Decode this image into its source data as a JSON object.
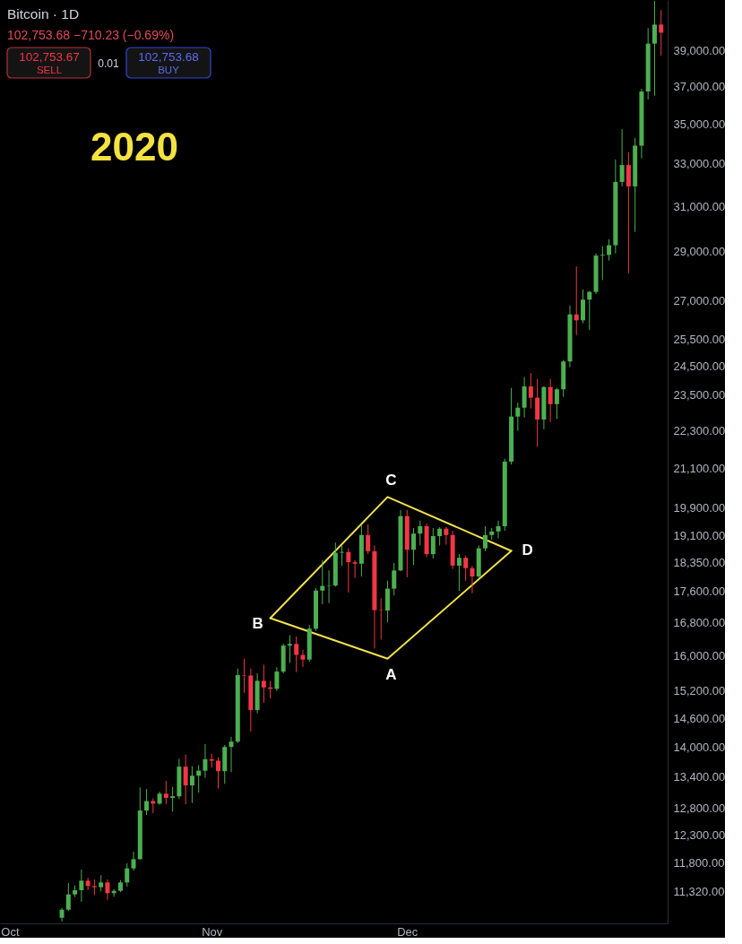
{
  "chart_data": {
    "type": "candlestick",
    "title": "Bitcoin · 1D",
    "subtitle": "102,753.68 −710.23 (−0.69%)",
    "x": [
      "2020-10-09",
      "2020-10-10",
      "2020-10-11",
      "2020-10-12",
      "2020-10-13",
      "2020-10-14",
      "2020-10-15",
      "2020-10-16",
      "2020-10-17",
      "2020-10-18",
      "2020-10-19",
      "2020-10-20",
      "2020-10-21",
      "2020-10-22",
      "2020-10-23",
      "2020-10-24",
      "2020-10-25",
      "2020-10-26",
      "2020-10-27",
      "2020-10-28",
      "2020-10-29",
      "2020-10-30",
      "2020-10-31",
      "2020-11-01",
      "2020-11-02",
      "2020-11-03",
      "2020-11-04",
      "2020-11-05",
      "2020-11-06",
      "2020-11-07",
      "2020-11-08",
      "2020-11-09",
      "2020-11-10",
      "2020-11-11",
      "2020-11-12",
      "2020-11-13",
      "2020-11-14",
      "2020-11-15",
      "2020-11-16",
      "2020-11-17",
      "2020-11-18",
      "2020-11-19",
      "2020-11-20",
      "2020-11-21",
      "2020-11-22",
      "2020-11-23",
      "2020-11-24",
      "2020-11-25",
      "2020-11-26",
      "2020-11-27",
      "2020-11-28",
      "2020-11-29",
      "2020-11-30",
      "2020-12-01",
      "2020-12-02",
      "2020-12-03",
      "2020-12-04",
      "2020-12-05",
      "2020-12-06",
      "2020-12-07",
      "2020-12-08",
      "2020-12-09",
      "2020-12-10",
      "2020-12-11",
      "2020-12-12",
      "2020-12-13",
      "2020-12-14",
      "2020-12-15",
      "2020-12-16",
      "2020-12-17",
      "2020-12-18",
      "2020-12-19",
      "2020-12-20",
      "2020-12-21",
      "2020-12-22",
      "2020-12-23",
      "2020-12-24",
      "2020-12-25",
      "2020-12-26",
      "2020-12-27",
      "2020-12-28",
      "2020-12-29",
      "2020-12-30",
      "2020-12-31",
      "2021-01-01",
      "2021-01-02",
      "2021-01-03",
      "2021-01-04",
      "2021-01-05",
      "2021-01-06",
      "2021-01-07",
      "2021-01-08",
      "2021-01-09"
    ],
    "ohlc": [
      [
        10890,
        11050,
        10830,
        11020
      ],
      [
        11020,
        11460,
        11000,
        11270
      ],
      [
        11270,
        11420,
        11230,
        11340
      ],
      [
        11340,
        11690,
        11150,
        11500
      ],
      [
        11500,
        11550,
        11340,
        11410
      ],
      [
        11410,
        11520,
        11260,
        11390
      ],
      [
        11390,
        11590,
        11320,
        11470
      ],
      [
        11470,
        11520,
        11180,
        11290
      ],
      [
        11290,
        11360,
        11230,
        11330
      ],
      [
        11330,
        11510,
        11310,
        11470
      ],
      [
        11470,
        11800,
        11400,
        11710
      ],
      [
        11710,
        12000,
        11670,
        11870
      ],
      [
        11870,
        13190,
        11860,
        12750
      ],
      [
        12750,
        13160,
        12670,
        12930
      ],
      [
        12930,
        12980,
        12700,
        12880
      ],
      [
        12880,
        13110,
        12860,
        13070
      ],
      [
        13070,
        13320,
        12870,
        12990
      ],
      [
        12990,
        13200,
        12730,
        13020
      ],
      [
        13020,
        13760,
        12970,
        13600
      ],
      [
        13600,
        13840,
        12870,
        13230
      ],
      [
        13230,
        13610,
        12890,
        13420
      ],
      [
        13420,
        13630,
        13090,
        13520
      ],
      [
        13520,
        14060,
        13380,
        13750
      ],
      [
        13750,
        13860,
        13580,
        13720
      ],
      [
        13720,
        13790,
        13170,
        13510
      ],
      [
        13510,
        14040,
        13260,
        14000
      ],
      [
        14000,
        14210,
        13490,
        14110
      ],
      [
        14110,
        15710,
        14080,
        15560
      ],
      [
        15560,
        15940,
        15160,
        15550
      ],
      [
        15550,
        15710,
        14320,
        14780
      ],
      [
        14780,
        15600,
        14710,
        15430
      ],
      [
        15430,
        15800,
        14940,
        15280
      ],
      [
        15280,
        15430,
        15030,
        15250
      ],
      [
        15250,
        15740,
        15200,
        15640
      ],
      [
        15640,
        16300,
        15600,
        16250
      ],
      [
        16250,
        16500,
        15840,
        16290
      ],
      [
        16290,
        16470,
        15630,
        16030
      ],
      [
        16030,
        16150,
        15750,
        15920
      ],
      [
        15920,
        16750,
        15870,
        16660
      ],
      [
        16660,
        17690,
        16610,
        17620
      ],
      [
        17620,
        18430,
        17270,
        17740
      ],
      [
        17740,
        18150,
        17300,
        17750
      ],
      [
        17750,
        18910,
        17720,
        18630
      ],
      [
        18630,
        18830,
        18270,
        18650
      ],
      [
        18650,
        18750,
        17570,
        18370
      ],
      [
        18370,
        18430,
        17950,
        18330
      ],
      [
        18330,
        19410,
        17990,
        19120
      ],
      [
        19120,
        19420,
        18590,
        18670
      ],
      [
        18670,
        18830,
        16180,
        17120
      ],
      [
        17120,
        17420,
        16390,
        17110
      ],
      [
        17110,
        17880,
        16820,
        17670
      ],
      [
        17670,
        18350,
        17490,
        18150
      ],
      [
        18150,
        19830,
        18130,
        19660
      ],
      [
        19660,
        19840,
        17970,
        18710
      ],
      [
        18710,
        19320,
        18300,
        19160
      ],
      [
        19160,
        19530,
        18830,
        19370
      ],
      [
        19370,
        19450,
        18510,
        18590
      ],
      [
        18590,
        19320,
        18470,
        19090
      ],
      [
        19090,
        19340,
        18830,
        19300
      ],
      [
        19300,
        19350,
        18850,
        19120
      ],
      [
        19120,
        19240,
        18190,
        18280
      ],
      [
        18280,
        18590,
        17610,
        18490
      ],
      [
        18490,
        18550,
        17880,
        18210
      ],
      [
        18210,
        18270,
        17550,
        17990
      ],
      [
        17990,
        18830,
        17940,
        18750
      ],
      [
        18750,
        19370,
        18670,
        19120
      ],
      [
        19120,
        19320,
        18990,
        19220
      ],
      [
        19220,
        19530,
        19030,
        19370
      ],
      [
        19370,
        21390,
        19240,
        21300
      ],
      [
        21300,
        23740,
        21210,
        22760
      ],
      [
        22760,
        23230,
        22290,
        23060
      ],
      [
        23060,
        24120,
        22730,
        23790
      ],
      [
        23790,
        24260,
        23030,
        23400
      ],
      [
        23400,
        24050,
        21770,
        22660
      ],
      [
        22660,
        23800,
        22340,
        23770
      ],
      [
        23770,
        24050,
        22580,
        23180
      ],
      [
        23180,
        23740,
        22680,
        23690
      ],
      [
        23690,
        24730,
        23430,
        24680
      ],
      [
        24680,
        26800,
        24470,
        26450
      ],
      [
        26450,
        28380,
        25660,
        26220
      ],
      [
        26220,
        27440,
        26110,
        27030
      ],
      [
        27030,
        27380,
        25850,
        27340
      ],
      [
        27340,
        28930,
        27260,
        28840
      ],
      [
        28840,
        29240,
        27820,
        28870
      ],
      [
        28870,
        29540,
        28630,
        29280
      ],
      [
        29280,
        33220,
        28930,
        32140
      ],
      [
        32140,
        34740,
        31930,
        32950
      ],
      [
        32950,
        33560,
        28100,
        31930
      ],
      [
        31930,
        34290,
        29860,
        33900
      ],
      [
        33900,
        36860,
        33270,
        36710
      ],
      [
        36710,
        40300,
        36280,
        39390
      ],
      [
        39390,
        41950,
        36480,
        40510
      ],
      [
        40510,
        41380,
        38710,
        40030
      ]
    ],
    "colors": [
      "#4caf50",
      "#4caf50",
      "#4caf50",
      "#4caf50",
      "#f23645",
      "#f23645",
      "#4caf50",
      "#f23645",
      "#4caf50",
      "#4caf50",
      "#4caf50",
      "#4caf50",
      "#4caf50",
      "#4caf50",
      "#f23645",
      "#4caf50",
      "#f23645",
      "#4caf50",
      "#4caf50",
      "#f23645",
      "#4caf50",
      "#4caf50",
      "#4caf50",
      "#f23645",
      "#f23645",
      "#4caf50",
      "#4caf50",
      "#4caf50",
      "#f23645",
      "#f23645",
      "#4caf50",
      "#f23645",
      "#f23645",
      "#4caf50",
      "#4caf50",
      "#4caf50",
      "#f23645",
      "#f23645",
      "#4caf50",
      "#4caf50",
      "#4caf50",
      "#4caf50",
      "#4caf50",
      "#4caf50",
      "#f23645",
      "#f23645",
      "#4caf50",
      "#f23645",
      "#f23645",
      "#f23645",
      "#4caf50",
      "#4caf50",
      "#4caf50",
      "#f23645",
      "#4caf50",
      "#4caf50",
      "#f23645",
      "#4caf50",
      "#4caf50",
      "#f23645",
      "#f23645",
      "#4caf50",
      "#f23645",
      "#f23645",
      "#4caf50",
      "#4caf50",
      "#4caf50",
      "#4caf50",
      "#4caf50",
      "#4caf50",
      "#4caf50",
      "#4caf50",
      "#f23645",
      "#f23645",
      "#4caf50",
      "#f23645",
      "#4caf50",
      "#4caf50",
      "#4caf50",
      "#f23645",
      "#4caf50",
      "#4caf50",
      "#4caf50",
      "#4caf50",
      "#4caf50",
      "#4caf50",
      "#4caf50",
      "#f23645",
      "#4caf50",
      "#4caf50",
      "#4caf50",
      "#4caf50",
      "#f23645"
    ],
    "series": [
      {
        "type": "line",
        "color": "#f2e04a",
        "x": [
          "2020-11-10",
          "2020-11-28",
          "2020-12-17"
        ],
        "values": [
          16920,
          20220,
          18680
        ]
      },
      {
        "type": "line",
        "color": "#f2e04a",
        "x": [
          "2020-11-10",
          "2020-11-28",
          "2020-12-17"
        ],
        "values": [
          16920,
          15940,
          18680
        ]
      }
    ],
    "xlim": [
      "2020-09-29T12:00",
      "2021-01-10"
    ],
    "xticks": [
      {
        "value": "2020-10-01",
        "label": "Oct"
      },
      {
        "value": "2020-11-01",
        "label": "Nov"
      },
      {
        "value": "2020-12-01",
        "label": "Dec"
      }
    ],
    "ylim": [
      10800,
      42000
    ],
    "yticks": [
      {
        "value": 11320,
        "label": "11,320.00"
      },
      {
        "value": 11800,
        "label": "11,800.00"
      },
      {
        "value": 12300,
        "label": "12,300.00"
      },
      {
        "value": 12800,
        "label": "12,800.00"
      },
      {
        "value": 13400,
        "label": "13,400.00"
      },
      {
        "value": 14000,
        "label": "14,000.00"
      },
      {
        "value": 14600,
        "label": "14,600.00"
      },
      {
        "value": 15200,
        "label": "15,200.00"
      },
      {
        "value": 16000,
        "label": "16,000.00"
      },
      {
        "value": 16800,
        "label": "16,800.00"
      },
      {
        "value": 17600,
        "label": "17,600.00"
      },
      {
        "value": 18350,
        "label": "18,350.00"
      },
      {
        "value": 19100,
        "label": "19,100.00"
      },
      {
        "value": 19900,
        "label": "19,900.00"
      },
      {
        "value": 21100,
        "label": "21,100.00"
      },
      {
        "value": 22300,
        "label": "22,300.00"
      },
      {
        "value": 23500,
        "label": "23,500.00"
      },
      {
        "value": 24500,
        "label": "24,500.00"
      },
      {
        "value": 25500,
        "label": "25,500.00"
      },
      {
        "value": 27000,
        "label": "27,000.00"
      },
      {
        "value": 29000,
        "label": "29,000.00"
      },
      {
        "value": 31000,
        "label": "31,000.00"
      },
      {
        "value": 33000,
        "label": "33,000.00"
      },
      {
        "value": 35000,
        "label": "35,000.00"
      },
      {
        "value": 37000,
        "label": "37,000.00"
      },
      {
        "value": 39000,
        "label": "39,000.00"
      }
    ],
    "log": true,
    "grid": false,
    "annotations": [
      "2020",
      "102,753.67",
      "SELL",
      "0.01",
      "102,753.68",
      "BUY",
      {
        "text": "C",
        "x": "2020-11-28",
        "y": 20220
      },
      {
        "text": "D",
        "x": "2020-12-17",
        "y": 18680
      },
      {
        "text": "B",
        "x": "2020-11-10",
        "y": 16920
      },
      {
        "text": "A",
        "x": "2020-11-28",
        "y": 15940
      }
    ]
  }
}
